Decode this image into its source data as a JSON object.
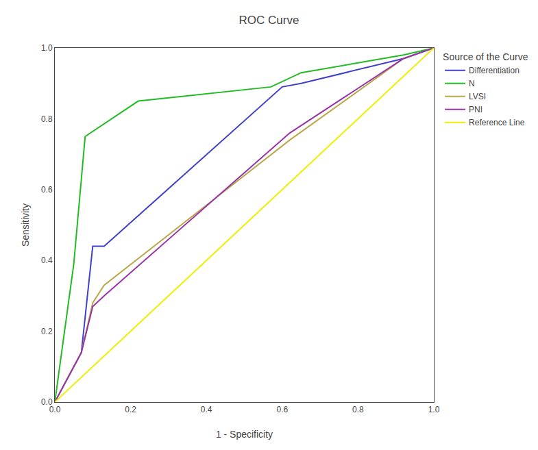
{
  "chart_data": {
    "type": "line",
    "title": "ROC Curve",
    "x_label": "1 - Specificity",
    "y_label": "Sensitivity",
    "legend_title": "Source of the Curve",
    "legend": "right",
    "grid": false,
    "xlim": [
      0.0,
      1.0
    ],
    "ylim": [
      0.0,
      1.0
    ],
    "xticks": [
      {
        "value": 0.0,
        "label": "0.0"
      },
      0.2,
      0.4,
      0.6,
      0.8,
      {
        "value": 1.0,
        "label": "1.0"
      }
    ],
    "yticks": [
      {
        "value": 0.0,
        "label": "0.0"
      },
      0.2,
      0.4,
      0.6,
      0.8,
      {
        "value": 1.0,
        "label": "1.0"
      }
    ],
    "series": [
      {
        "name": "Differentiation",
        "color": "#4040cc",
        "x": [
          0.0,
          0.07,
          0.1,
          0.13,
          0.6,
          0.65,
          0.92,
          1.0
        ],
        "values": [
          0.0,
          0.14,
          0.44,
          0.44,
          0.89,
          0.9,
          0.97,
          1.0
        ]
      },
      {
        "name": "N",
        "color": "#22bb22",
        "x": [
          0.0,
          0.05,
          0.08,
          0.22,
          0.57,
          0.65,
          0.92,
          1.0
        ],
        "values": [
          0.0,
          0.39,
          0.75,
          0.85,
          0.89,
          0.93,
          0.98,
          1.0
        ]
      },
      {
        "name": "LVSI",
        "color": "#b8a84a",
        "x": [
          0.0,
          0.07,
          0.1,
          0.13,
          0.62,
          0.92,
          1.0
        ],
        "values": [
          0.0,
          0.14,
          0.28,
          0.33,
          0.74,
          0.97,
          1.0
        ]
      },
      {
        "name": "PNI",
        "color": "#9933aa",
        "x": [
          0.0,
          0.07,
          0.1,
          0.13,
          0.62,
          0.92,
          1.0
        ],
        "values": [
          0.0,
          0.14,
          0.27,
          0.3,
          0.76,
          0.97,
          1.0
        ]
      },
      {
        "name": "Reference Line",
        "color": "#eeee00",
        "x": [
          0.0,
          1.0
        ],
        "values": [
          0.0,
          1.0
        ]
      }
    ]
  }
}
